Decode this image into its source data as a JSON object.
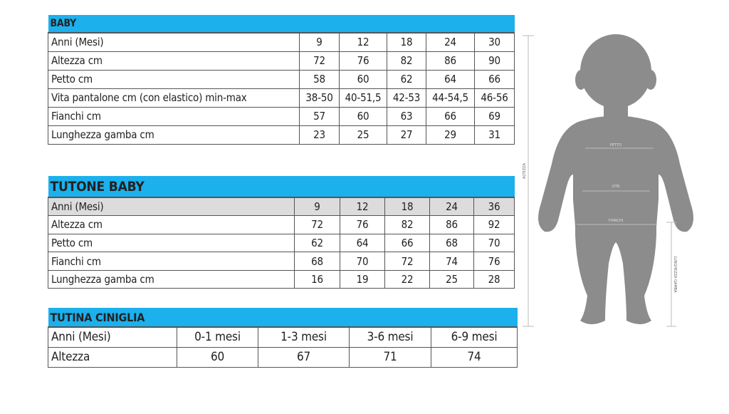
{
  "tables": [
    {
      "title": "BABY",
      "rows": [
        [
          "Anni (Mesi)",
          "9",
          "12",
          "18",
          "24",
          "30"
        ],
        [
          "Altezza cm",
          "72",
          "76",
          "82",
          "86",
          "90"
        ],
        [
          "Petto cm",
          "58",
          "60",
          "62",
          "64",
          "66"
        ],
        [
          "Vita pantalone cm (con elastico) min-max",
          "38-50",
          "40-51,5",
          "42-53",
          "44-54,5",
          "46-56"
        ],
        [
          "Fianchi cm",
          "57",
          "60",
          "63",
          "66",
          "69"
        ],
        [
          "Lunghezza gamba cm",
          "23",
          "25",
          "27",
          "29",
          "31"
        ]
      ]
    },
    {
      "title": "TUTONE BABY",
      "rows": [
        [
          "Anni (Mesi)",
          "9",
          "12",
          "18",
          "24",
          "36"
        ],
        [
          "Altezza cm",
          "72",
          "76",
          "82",
          "86",
          "92"
        ],
        [
          "Petto cm",
          "62",
          "64",
          "66",
          "68",
          "70"
        ],
        [
          "Fianchi cm",
          "68",
          "70",
          "72",
          "74",
          "76"
        ],
        [
          "Lunghezza gamba cm",
          "16",
          "19",
          "22",
          "25",
          "28"
        ]
      ]
    },
    {
      "title": "TUTINA CINIGLIA",
      "rows": [
        [
          "Anni (Mesi)",
          "0-1 mesi",
          "1-3 mesi",
          "3-6 mesi",
          "6-9 mesi"
        ],
        [
          "Altezza",
          "60",
          "67",
          "71",
          "74"
        ]
      ]
    }
  ],
  "figure": {
    "labels": {
      "petto": "PETTO",
      "vita": "VITA",
      "fianchi": "FIANCHI",
      "altezza": "ALTEZZA",
      "gamba": "LUNGHEZZA GAMBA"
    },
    "colors": {
      "header": "#1cb0ec",
      "silhouette": "#8c8c8c"
    }
  }
}
